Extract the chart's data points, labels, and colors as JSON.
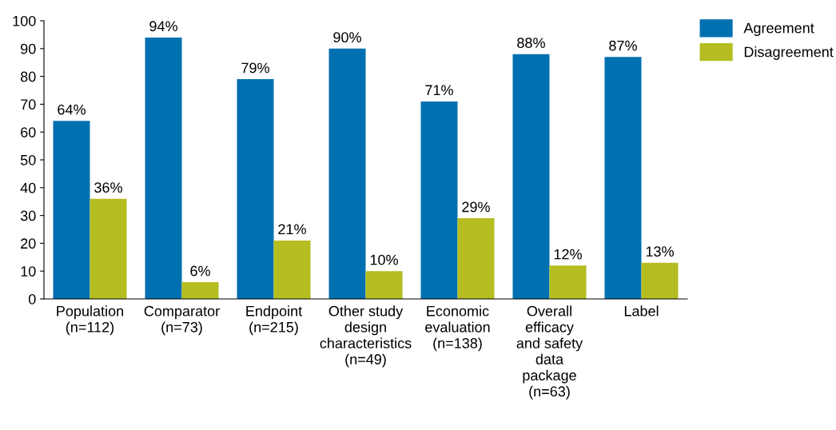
{
  "chart_data": {
    "type": "bar",
    "categories": [
      "Population\n(n=112)",
      "Comparator\n(n=73)",
      "Endpoint\n(n=215)",
      "Other study\ndesign\ncharacteristics\n(n=49)",
      "Economic\nevaluation\n(n=138)",
      "Overall\nefficacy\nand safety\ndata\npackage\n(n=63)",
      "Label"
    ],
    "series": [
      {
        "name": "Agreement",
        "color": "#0070b0",
        "values": [
          64,
          94,
          79,
          90,
          71,
          88,
          87
        ],
        "value_labels": [
          "64%",
          "94%",
          "79%",
          "90%",
          "71%",
          "88%",
          "87%"
        ]
      },
      {
        "name": "Disagreement",
        "color": "#b5bd21",
        "values": [
          36,
          6,
          21,
          10,
          29,
          12,
          13
        ],
        "value_labels": [
          "36%",
          "6%",
          "21%",
          "10%",
          "29%",
          "12%",
          "13%"
        ]
      }
    ],
    "ylim": [
      0,
      100
    ],
    "yticks": [
      0,
      10,
      20,
      30,
      40,
      50,
      60,
      70,
      80,
      90,
      100
    ],
    "grid": false,
    "legend": "top right"
  }
}
